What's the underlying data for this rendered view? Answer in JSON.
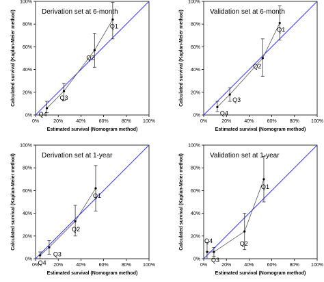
{
  "chart_data": [
    {
      "type": "scatter",
      "title": "Derivation set at 6-month",
      "xlabel": "Estimated survival (Nomogram method)",
      "ylabel": "Calculated survival (Kaplan-Meier method)",
      "xlim": [
        0,
        100
      ],
      "ylim": [
        0,
        100
      ],
      "ticks": [
        "0%",
        "20%",
        "40%",
        "60%",
        "80%",
        "100%"
      ],
      "reference_line_color": "#3333ee",
      "series": [
        {
          "points": [
            {
              "label": "Q4",
              "x": 10,
              "y": 6,
              "lo": 2,
              "hi": 12
            },
            {
              "label": "Q3",
              "x": 25,
              "y": 21,
              "lo": 13,
              "hi": 28
            },
            {
              "label": "Q2",
              "x": 52,
              "y": 57,
              "lo": 42,
              "hi": 72
            },
            {
              "label": "Q1",
              "x": 68,
              "y": 84,
              "lo": 67,
              "hi": 99
            }
          ]
        }
      ]
    },
    {
      "type": "scatter",
      "title": "Validation set at 6-month",
      "xlabel": "Estimated survival (Nomogram method)",
      "ylabel": "Calculated survival (Kaplan-Meier method)",
      "xlim": [
        0,
        100
      ],
      "ylim": [
        0,
        100
      ],
      "ticks": [
        "0%",
        "20%",
        "40%",
        "60%",
        "80%",
        "100%"
      ],
      "reference_line_color": "#3333ee",
      "series": [
        {
          "points": [
            {
              "label": "Q4",
              "x": 12,
              "y": 7,
              "lo": 3,
              "hi": 12
            },
            {
              "label": "Q3",
              "x": 23,
              "y": 18,
              "lo": 12,
              "hi": 24
            },
            {
              "label": "Q2",
              "x": 52,
              "y": 50,
              "lo": 34,
              "hi": 67
            },
            {
              "label": "Q1",
              "x": 67,
              "y": 81,
              "lo": 66,
              "hi": 96
            }
          ]
        }
      ]
    },
    {
      "type": "scatter",
      "title": "Derivation set at 1-year",
      "xlabel": "Estimated survival (Nomogram method)",
      "ylabel": "Calculated survival (Kaplan-Meier method)",
      "xlim": [
        0,
        100
      ],
      "ylim": [
        0,
        100
      ],
      "ticks": [
        "0%",
        "20%",
        "40%",
        "60%",
        "80%",
        "100%"
      ],
      "reference_line_color": "#3333ee",
      "series": [
        {
          "points": [
            {
              "label": "Q4",
              "x": 4,
              "y": 3,
              "lo": 0,
              "hi": 6
            },
            {
              "label": "Q3",
              "x": 12,
              "y": 10,
              "lo": 4,
              "hi": 16
            },
            {
              "label": "Q2",
              "x": 35,
              "y": 33,
              "lo": 20,
              "hi": 47
            },
            {
              "label": "Q1",
              "x": 53,
              "y": 62,
              "lo": 42,
              "hi": 82
            }
          ]
        }
      ]
    },
    {
      "type": "scatter",
      "title": "Validation set at 1-year",
      "xlabel": "Estimated survival (Nomogram method)",
      "ylabel": "Calculated survival (Kaplan-Meier method)",
      "xlim": [
        0,
        100
      ],
      "ylim": [
        0,
        100
      ],
      "ticks": [
        "0%",
        "20%",
        "40%",
        "60%",
        "80%",
        "100%"
      ],
      "reference_line_color": "#3333ee",
      "series": [
        {
          "points": [
            {
              "label": "Q4",
              "x": 3,
              "y": 6,
              "lo": 0,
              "hi": 14
            },
            {
              "label": "Q3",
              "x": 9,
              "y": 6,
              "lo": 2,
              "hi": 10
            },
            {
              "label": "Q2",
              "x": 36,
              "y": 24,
              "lo": 8,
              "hi": 40
            },
            {
              "label": "Q1",
              "x": 53,
              "y": 70,
              "lo": 50,
              "hi": 90
            }
          ]
        }
      ]
    }
  ]
}
